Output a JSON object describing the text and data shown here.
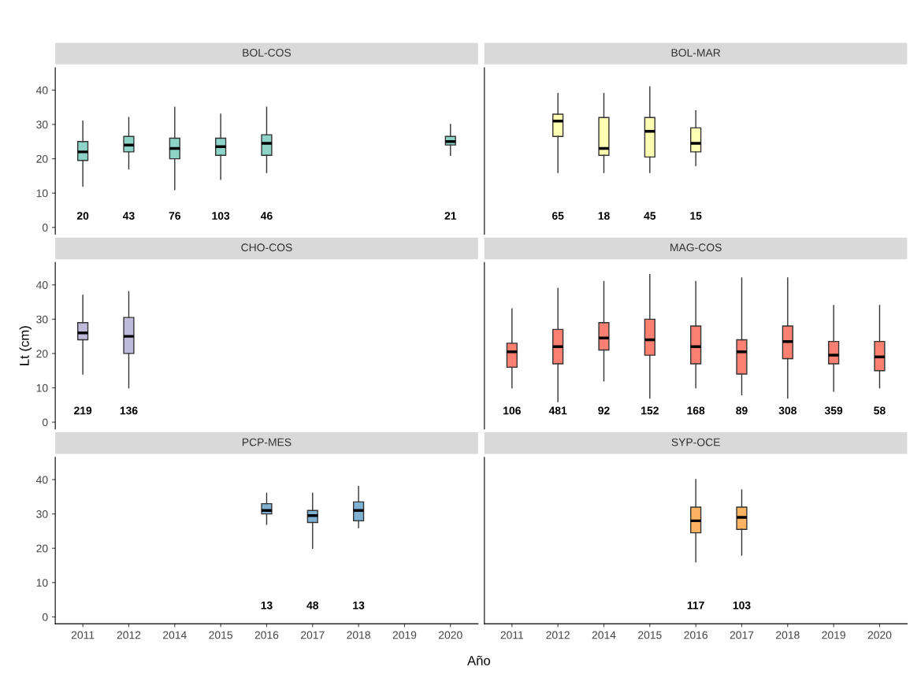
{
  "chart_data": [
    {
      "type": "box",
      "title": "BOL-COS",
      "color": "#8dd3c7",
      "categories": [
        "2011",
        "2012",
        "2014",
        "2015",
        "2016",
        "2017",
        "2018",
        "2019",
        "2020"
      ],
      "ylim": [
        -2,
        46.5
      ],
      "yticks": [
        0,
        10,
        20,
        30,
        40
      ],
      "tick_labels": "y",
      "grid": false,
      "boxes": [
        {
          "low": 12,
          "q1": 19.5,
          "median": 22,
          "q3": 25,
          "high": 31
        },
        {
          "low": 17,
          "q1": 22,
          "median": 24,
          "q3": 26.5,
          "high": 32
        },
        {
          "low": 11,
          "q1": 20,
          "median": 23,
          "q3": 26,
          "high": 35
        },
        {
          "low": 14,
          "q1": 21,
          "median": 23.5,
          "q3": 26,
          "high": 33
        },
        {
          "low": 16,
          "q1": 21,
          "median": 24.5,
          "q3": 27,
          "high": 35
        },
        null,
        null,
        null,
        {
          "low": 21,
          "q1": 24,
          "median": 25,
          "q3": 26.5,
          "high": 30
        }
      ],
      "value_labels": [
        "20",
        "43",
        "76",
        "103",
        "46",
        null,
        null,
        null,
        "21"
      ]
    },
    {
      "type": "box",
      "title": "BOL-MAR",
      "color": "#ffffb3",
      "categories": [
        "2011",
        "2012",
        "2014",
        "2015",
        "2016",
        "2017",
        "2018",
        "2019",
        "2020"
      ],
      "ylim": [
        -2,
        46.5
      ],
      "yticks": [
        0,
        10,
        20,
        30,
        40
      ],
      "tick_labels": false,
      "grid": false,
      "boxes": [
        null,
        {
          "low": 16,
          "q1": 26.5,
          "median": 31,
          "q3": 33,
          "high": 39
        },
        {
          "low": 16,
          "q1": 21,
          "median": 23,
          "q3": 32,
          "high": 39
        },
        {
          "low": 16,
          "q1": 20.5,
          "median": 28,
          "q3": 32,
          "high": 41
        },
        {
          "low": 18,
          "q1": 22,
          "median": 24.5,
          "q3": 29,
          "high": 34
        },
        null,
        null,
        null,
        null
      ],
      "value_labels": [
        null,
        "65",
        "18",
        "45",
        "15",
        null,
        null,
        null,
        null
      ]
    },
    {
      "type": "box",
      "title": "CHO-COS",
      "ylabel": "Lt (cm)",
      "color": "#bebada",
      "categories": [
        "2011",
        "2012",
        "2014",
        "2015",
        "2016",
        "2017",
        "2018",
        "2019",
        "2020"
      ],
      "ylim": [
        -2,
        46.5
      ],
      "yticks": [
        0,
        10,
        20,
        30,
        40
      ],
      "tick_labels": "y",
      "grid": false,
      "boxes": [
        {
          "low": 14,
          "q1": 24,
          "median": 26,
          "q3": 29,
          "high": 37
        },
        {
          "low": 10,
          "q1": 20,
          "median": 25,
          "q3": 30.5,
          "high": 38
        },
        null,
        null,
        null,
        null,
        null,
        null,
        null
      ],
      "value_labels": [
        "219",
        "136",
        null,
        null,
        null,
        null,
        null,
        null,
        null
      ]
    },
    {
      "type": "box",
      "title": "MAG-COS",
      "color": "#fb8072",
      "categories": [
        "2011",
        "2012",
        "2014",
        "2015",
        "2016",
        "2017",
        "2018",
        "2019",
        "2020"
      ],
      "ylim": [
        -2,
        46.5
      ],
      "yticks": [
        0,
        10,
        20,
        30,
        40
      ],
      "tick_labels": false,
      "grid": false,
      "boxes": [
        {
          "low": 10,
          "q1": 16,
          "median": 20.5,
          "q3": 23,
          "high": 33
        },
        {
          "low": 6,
          "q1": 17,
          "median": 22,
          "q3": 27,
          "high": 39
        },
        {
          "low": 12,
          "q1": 21,
          "median": 24.5,
          "q3": 29,
          "high": 41
        },
        {
          "low": 7,
          "q1": 19.5,
          "median": 24,
          "q3": 30,
          "high": 43
        },
        {
          "low": 10,
          "q1": 17,
          "median": 22,
          "q3": 28,
          "high": 41
        },
        {
          "low": 8,
          "q1": 14,
          "median": 20.5,
          "q3": 24,
          "high": 42
        },
        {
          "low": 7,
          "q1": 18.5,
          "median": 23.5,
          "q3": 28,
          "high": 42
        },
        {
          "low": 9,
          "q1": 17,
          "median": 19.5,
          "q3": 23.5,
          "high": 34
        },
        {
          "low": 10,
          "q1": 15,
          "median": 19,
          "q3": 23.5,
          "high": 34
        }
      ],
      "value_labels": [
        "106",
        "481",
        "92",
        "152",
        "168",
        "89",
        "308",
        "359",
        "58"
      ]
    },
    {
      "type": "box",
      "title": "PCP-MES",
      "xlabel": "Año",
      "color": "#80b1d3",
      "categories": [
        "2011",
        "2012",
        "2014",
        "2015",
        "2016",
        "2017",
        "2018",
        "2019",
        "2020"
      ],
      "ylim": [
        -2,
        46.5
      ],
      "yticks": [
        0,
        10,
        20,
        30,
        40
      ],
      "grid": false,
      "boxes": [
        null,
        null,
        null,
        null,
        {
          "low": 27,
          "q1": 30,
          "median": 31,
          "q3": 33,
          "high": 36
        },
        {
          "low": 20,
          "q1": 27.5,
          "median": 29.5,
          "q3": 31,
          "high": 36
        },
        {
          "low": 26,
          "q1": 28,
          "median": 31,
          "q3": 33.5,
          "high": 38
        },
        null,
        null
      ],
      "value_labels": [
        null,
        null,
        null,
        null,
        "13",
        "48",
        "13",
        null,
        null
      ]
    },
    {
      "type": "box",
      "title": "SYP-OCE",
      "color": "#fdb462",
      "categories": [
        "2011",
        "2012",
        "2014",
        "2015",
        "2016",
        "2017",
        "2018",
        "2019",
        "2020"
      ],
      "ylim": [
        -2,
        46.5
      ],
      "yticks": [
        0,
        10,
        20,
        30,
        40
      ],
      "tick_labels": "x",
      "grid": false,
      "boxes": [
        null,
        null,
        null,
        null,
        {
          "low": 16,
          "q1": 24.5,
          "median": 28,
          "q3": 32,
          "high": 40
        },
        {
          "low": 18,
          "q1": 25.5,
          "median": 29,
          "q3": 32,
          "high": 37
        },
        null,
        null,
        null
      ],
      "value_labels": [
        null,
        null,
        null,
        null,
        "117",
        "103",
        null,
        null,
        null
      ]
    }
  ]
}
